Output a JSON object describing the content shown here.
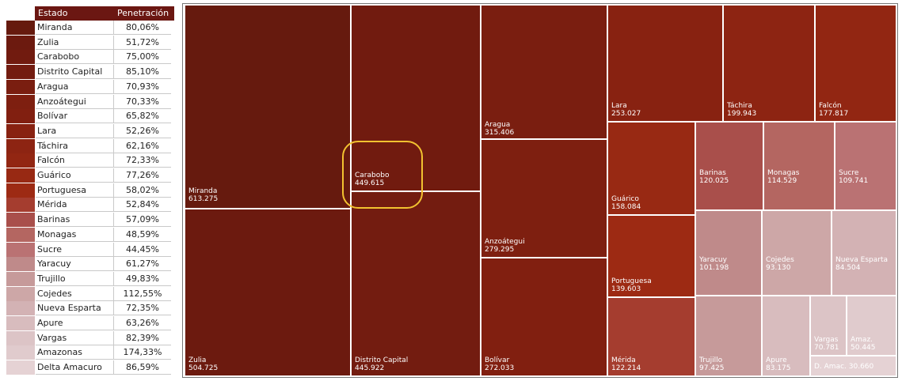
{
  "chart_data": {
    "type": "treemap",
    "legend_headers": {
      "state": "Estado",
      "penetration": "Penetración"
    },
    "rows": [
      {
        "state": "Miranda",
        "penetration": "80,06%",
        "value": "613.275",
        "label": "Miranda",
        "color": "#661a0e"
      },
      {
        "state": "Zulia",
        "penetration": "51,72%",
        "value": "504.725",
        "label": "Zulia",
        "color": "#6c1a0f"
      },
      {
        "state": "Carabobo",
        "penetration": "75,00%",
        "value": "449.615",
        "label": "Carabobo",
        "color": "#711b0f"
      },
      {
        "state": "Distrito Capital",
        "penetration": "85,10%",
        "value": "445.922",
        "label": "Distrito Capital",
        "color": "#731c10"
      },
      {
        "state": "Aragua",
        "penetration": "70,93%",
        "value": "315.406",
        "label": "Aragua",
        "color": "#7a1e10"
      },
      {
        "state": "Anzoátegui",
        "penetration": "70,33%",
        "value": "279.295",
        "label": "Anzoátegui",
        "color": "#7e1f10"
      },
      {
        "state": "Bolívar",
        "penetration": "65,82%",
        "value": "272.033",
        "label": "Bolívar",
        "color": "#811f10"
      },
      {
        "state": "Lara",
        "penetration": "52,26%",
        "value": "253.027",
        "label": "Lara",
        "color": "#882211"
      },
      {
        "state": "Táchira",
        "penetration": "62,16%",
        "value": "199.943",
        "label": "Táchira",
        "color": "#8d2412"
      },
      {
        "state": "Falcón",
        "penetration": "72,33%",
        "value": "177.817",
        "label": "Falcón",
        "color": "#922612"
      },
      {
        "state": "Guárico",
        "penetration": "77,26%",
        "value": "158.084",
        "label": "Guárico",
        "color": "#982913"
      },
      {
        "state": "Portuguesa",
        "penetration": "58,02%",
        "value": "139.603",
        "label": "Portuguesa",
        "color": "#9d2a13"
      },
      {
        "state": "Mérida",
        "penetration": "52,84%",
        "value": "122.214",
        "label": "Mérida",
        "color": "#a53d2f"
      },
      {
        "state": "Barinas",
        "penetration": "57,09%",
        "value": "120.025",
        "label": "Barinas",
        "color": "#a94f4b"
      },
      {
        "state": "Monagas",
        "penetration": "48,59%",
        "value": "114.529",
        "label": "Monagas",
        "color": "#b46661"
      },
      {
        "state": "Sucre",
        "penetration": "44,45%",
        "value": "109.741",
        "label": "Sucre",
        "color": "#ba7273"
      },
      {
        "state": "Yaracuy",
        "penetration": "61,27%",
        "value": "101.198",
        "label": "Yaracuy",
        "color": "#bf8a8a"
      },
      {
        "state": "Trujillo",
        "penetration": "49,83%",
        "value": "97.425",
        "label": "Trujillo",
        "color": "#c69a9a"
      },
      {
        "state": "Cojedes",
        "penetration": "112,55%",
        "value": "93.130",
        "label": "Cojedes",
        "color": "#cda7a7"
      },
      {
        "state": "Nueva Esparta",
        "penetration": "72,35%",
        "value": "84.504",
        "label": "Nueva Esparta",
        "color": "#d3b2b4"
      },
      {
        "state": "Apure",
        "penetration": "63,26%",
        "value": "83.175",
        "label": "Apure",
        "color": "#d8bcbe"
      },
      {
        "state": "Vargas",
        "penetration": "82,39%",
        "value": "70.781",
        "label": "Vargas",
        "color": "#dcc4c6"
      },
      {
        "state": "Amazonas",
        "penetration": "174,33%",
        "value": "50.445",
        "label": "Amaz.",
        "color": "#e0cbcd"
      },
      {
        "state": "Delta Amacuro",
        "penetration": "86,59%",
        "value": "30.660",
        "label": "D. Amac.",
        "color": "#e5d2d4"
      }
    ],
    "highlighted": "Carabobo"
  }
}
